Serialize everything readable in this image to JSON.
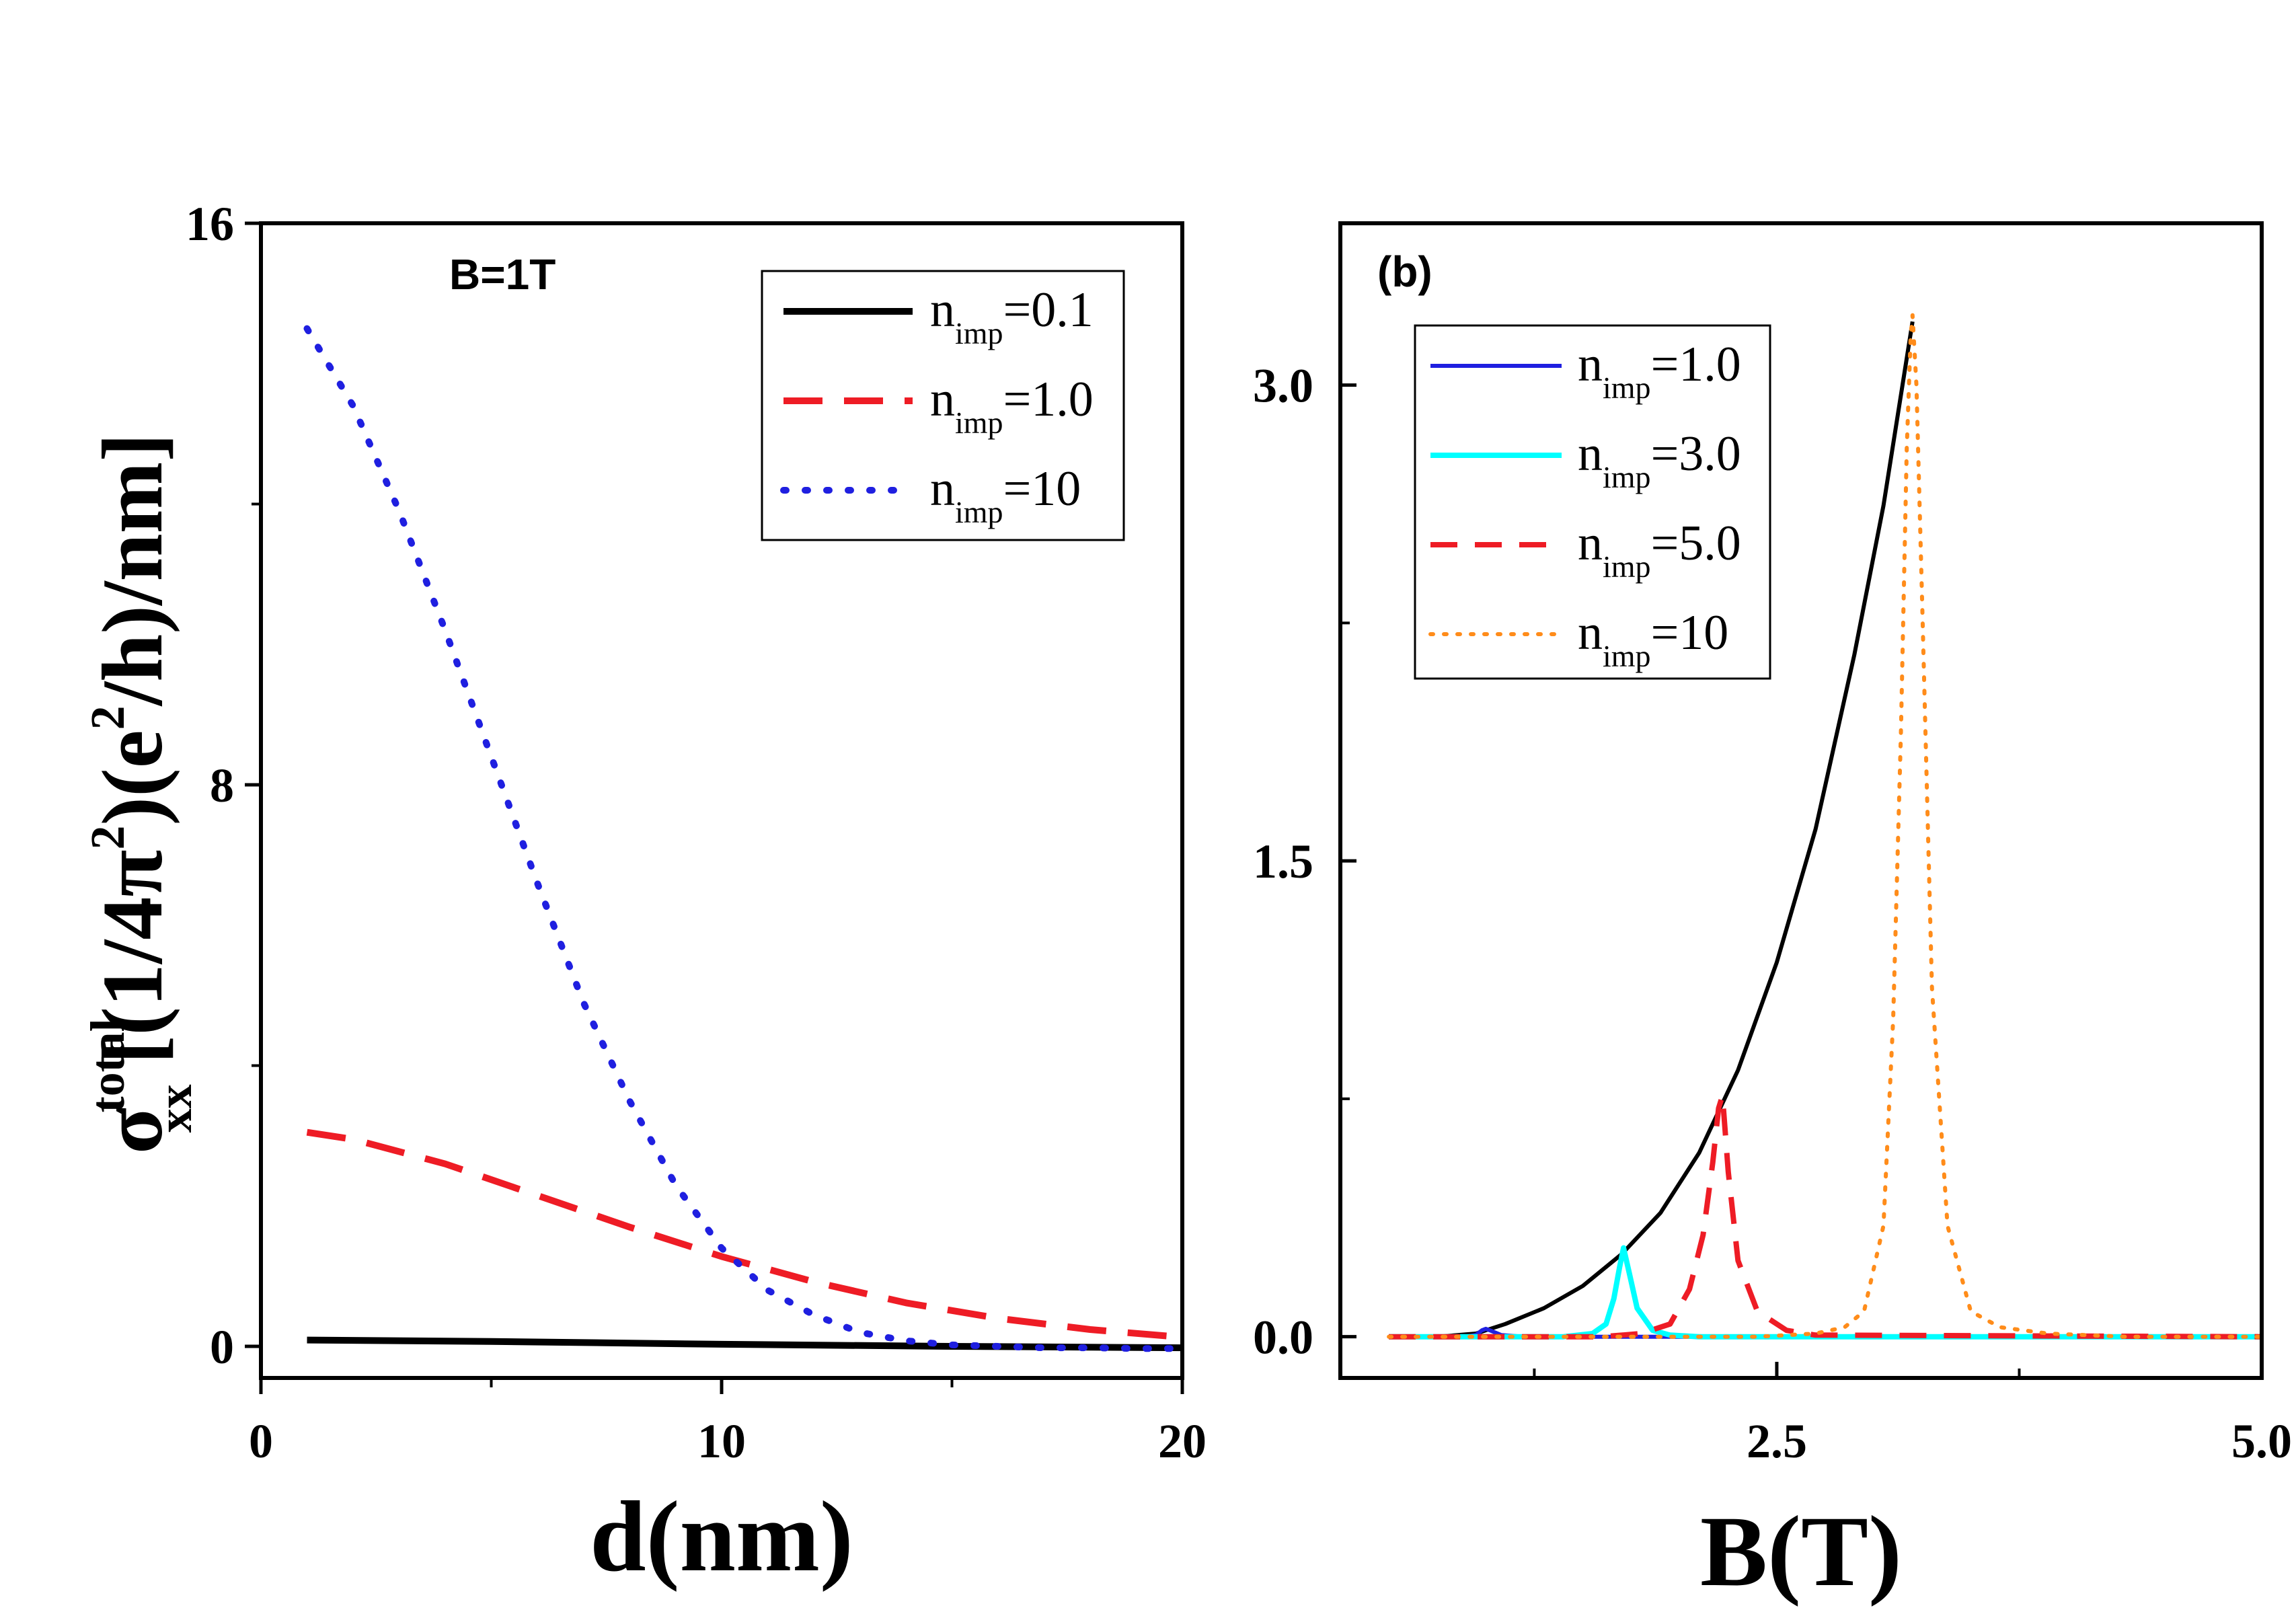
{
  "chart_data": [
    {
      "type": "line",
      "panel_label": "",
      "annotation": "B=1T",
      "xlabel": "d(nm)",
      "ylabel": {
        "sigma": "σ",
        "sub": "xx",
        "sup": "total",
        "unit_parts": [
          "[(1/4π",
          "2",
          ")(e",
          "2",
          "/h)/nm]"
        ]
      },
      "xlim": [
        0,
        20
      ],
      "ylim": [
        -0.45,
        16
      ],
      "xticks": [
        0,
        10,
        20
      ],
      "xtick_labels": [
        "0",
        "10",
        "20"
      ],
      "xminor": [
        5,
        15
      ],
      "yticks": [
        0,
        8,
        16
      ],
      "ytick_labels": [
        "0",
        "8",
        "16"
      ],
      "yminor": [
        4,
        12
      ],
      "legend_position": "top-right",
      "series": [
        {
          "name": "n_imp=0.1",
          "legend": {
            "main": "n",
            "sub": "imp",
            "value": "=0.1"
          },
          "color": "#000000",
          "dash": "",
          "width": 10,
          "x": [
            1,
            5,
            10,
            15,
            20
          ],
          "y": [
            0.09,
            0.07,
            0.03,
            0.0,
            -0.02
          ]
        },
        {
          "name": "n_imp=1.0",
          "legend": {
            "main": "n",
            "sub": "imp",
            "value": "=1.0"
          },
          "color": "#ee1c25",
          "dash": "58,32",
          "width": 10,
          "x": [
            1,
            2,
            4,
            6,
            8,
            10,
            12,
            14,
            16,
            18,
            20
          ],
          "y": [
            3.05,
            2.95,
            2.6,
            2.15,
            1.7,
            1.28,
            0.92,
            0.62,
            0.4,
            0.24,
            0.13
          ]
        },
        {
          "name": "n_imp=10",
          "legend": {
            "main": "n",
            "sub": "imp",
            "value": "=10"
          },
          "color": "#1f1fe0",
          "dash": "4,28",
          "width": 10,
          "x": [
            1,
            2,
            3,
            4,
            5,
            6,
            7,
            8,
            9,
            10,
            11,
            12,
            13,
            14,
            15,
            16,
            17,
            18,
            19,
            20
          ],
          "y": [
            14.5,
            13.4,
            11.9,
            10.2,
            8.4,
            6.6,
            4.9,
            3.5,
            2.3,
            1.4,
            0.8,
            0.45,
            0.2,
            0.08,
            0.02,
            0.0,
            -0.02,
            -0.02,
            -0.03,
            -0.03
          ]
        }
      ]
    },
    {
      "type": "line",
      "panel_label": "(b)",
      "annotation": "",
      "xlabel": "B(T)",
      "ylabel": "",
      "xlim": [
        0.25,
        5.0
      ],
      "ylim": [
        -0.13,
        3.51
      ],
      "xticks": [
        2.5,
        5.0
      ],
      "xtick_labels": [
        "2.5",
        "5.0"
      ],
      "xminor": [
        1.25,
        3.75
      ],
      "yticks": [
        0.0,
        1.5,
        3.0
      ],
      "ytick_labels": [
        "0.0",
        "1.5",
        "3.0"
      ],
      "yminor": [
        0.75,
        2.25
      ],
      "legend_position": "top-left",
      "series": [
        {
          "name": "",
          "legend": null,
          "color": "#000000",
          "dash": "",
          "width": 6,
          "x": [
            0.5,
            0.75,
            0.95,
            1.0,
            1.1,
            1.3,
            1.5,
            1.7,
            1.9,
            2.1,
            2.3,
            2.5,
            2.7,
            2.9,
            3.05,
            3.2
          ],
          "y": [
            0.0,
            0.0,
            0.01,
            0.02,
            0.04,
            0.09,
            0.16,
            0.26,
            0.39,
            0.58,
            0.84,
            1.18,
            1.6,
            2.15,
            2.62,
            3.2
          ]
        },
        {
          "name": "n_imp=1.0",
          "legend": {
            "main": "n",
            "sub": "imp",
            "value": "=1.0"
          },
          "color": "#1f1fe0",
          "dash": "",
          "width": 6,
          "x": [
            0.5,
            0.9,
            0.95,
            0.98,
            1.0,
            1.03,
            1.08,
            1.2,
            1.5,
            5.0
          ],
          "y": [
            0.0,
            0.0,
            0.006,
            0.02,
            0.025,
            0.018,
            0.005,
            0.0,
            0.0,
            0.0
          ]
        },
        {
          "name": "n_imp=3.0",
          "legend": {
            "main": "n",
            "sub": "imp",
            "value": "=3.0"
          },
          "color": "#00ffff",
          "dash": "",
          "width": 8,
          "x": [
            0.5,
            1.4,
            1.55,
            1.62,
            1.66,
            1.69,
            1.71,
            1.74,
            1.78,
            1.86,
            1.95,
            2.1,
            5.0
          ],
          "y": [
            0.0,
            0.0,
            0.01,
            0.04,
            0.12,
            0.22,
            0.28,
            0.2,
            0.09,
            0.02,
            0.005,
            0.0,
            0.0
          ]
        },
        {
          "name": "n_imp=5.0",
          "legend": {
            "main": "n",
            "sub": "imp",
            "value": "=5.0"
          },
          "color": "#ee1c25",
          "dash": "40,26",
          "width": 8,
          "x": [
            0.5,
            1.6,
            1.8,
            1.95,
            2.05,
            2.12,
            2.17,
            2.2,
            2.22,
            2.25,
            2.3,
            2.4,
            2.55,
            2.7,
            5.0
          ],
          "y": [
            0.0,
            0.0,
            0.01,
            0.04,
            0.15,
            0.32,
            0.55,
            0.72,
            0.76,
            0.52,
            0.24,
            0.08,
            0.02,
            0.005,
            0.0
          ]
        },
        {
          "name": "n_imp=10",
          "legend": {
            "main": "n",
            "sub": "imp",
            "value": "=10"
          },
          "color": "#ff8c1a",
          "dash": "4,16",
          "width": 6,
          "x": [
            0.5,
            2.4,
            2.7,
            2.85,
            2.95,
            3.05,
            3.1,
            3.14,
            3.17,
            3.19,
            3.2,
            3.22,
            3.25,
            3.3,
            3.38,
            3.5,
            3.65,
            3.9,
            4.3,
            5.0
          ],
          "y": [
            0.0,
            0.0,
            0.01,
            0.03,
            0.08,
            0.35,
            1.0,
            1.9,
            2.8,
            3.15,
            3.22,
            3.0,
            2.3,
            1.1,
            0.35,
            0.08,
            0.03,
            0.01,
            0.0,
            0.0
          ]
        }
      ]
    }
  ]
}
